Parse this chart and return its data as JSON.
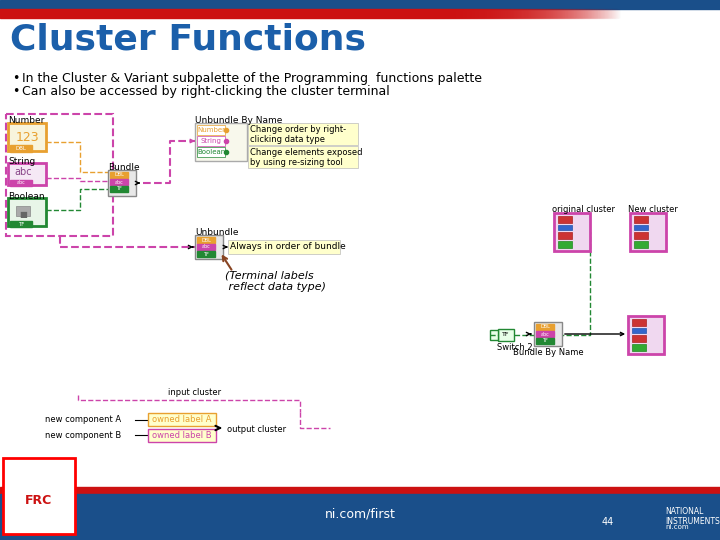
{
  "title": "Cluster Functions",
  "title_color": "#1b5faa",
  "bg_color": "#ffffff",
  "header_blue": "#1a4f8a",
  "header_red": "#cc1111",
  "footer_blue": "#1a4f8a",
  "footer_red": "#cc1111",
  "bullet1": "In the Cluster & Variant subpalette of the Programming  functions palette",
  "bullet2": "Can also be accessed by right-clicking the cluster terminal",
  "footer_text": "ni.com/first",
  "page_number": "44",
  "color_orange": "#e8a030",
  "color_pink": "#cc44aa",
  "color_green": "#228833",
  "color_yellow_bg": "#ffffcc",
  "color_dark_blue": "#1a4f8a",
  "label_number": "Number",
  "label_string": "String",
  "label_boolean": "Boolean",
  "label_bundle": "Bundle",
  "label_unbundle_by_name": "Unbundle By Name",
  "label_unbundle": "Unbundle",
  "label_terminal": "(Terminal labels\n reflect data type)",
  "label_original_cluster": "original cluster",
  "label_new_cluster": "New cluster",
  "label_switch2": "Switch 2",
  "label_bundle_by_name": "Bundle By Name",
  "label_input_cluster": "input cluster",
  "label_output_cluster": "output cluster",
  "label_new_comp_a": "new component A",
  "label_new_comp_b": "new component B",
  "label_owned_a": "owned label A",
  "label_owned_b": "owned label B",
  "label_change_order": "Change order by right-\nclicking data type",
  "label_change_elements": "Change elements exposed\nby using re-sizing tool",
  "label_always": "Always in order of bundle"
}
